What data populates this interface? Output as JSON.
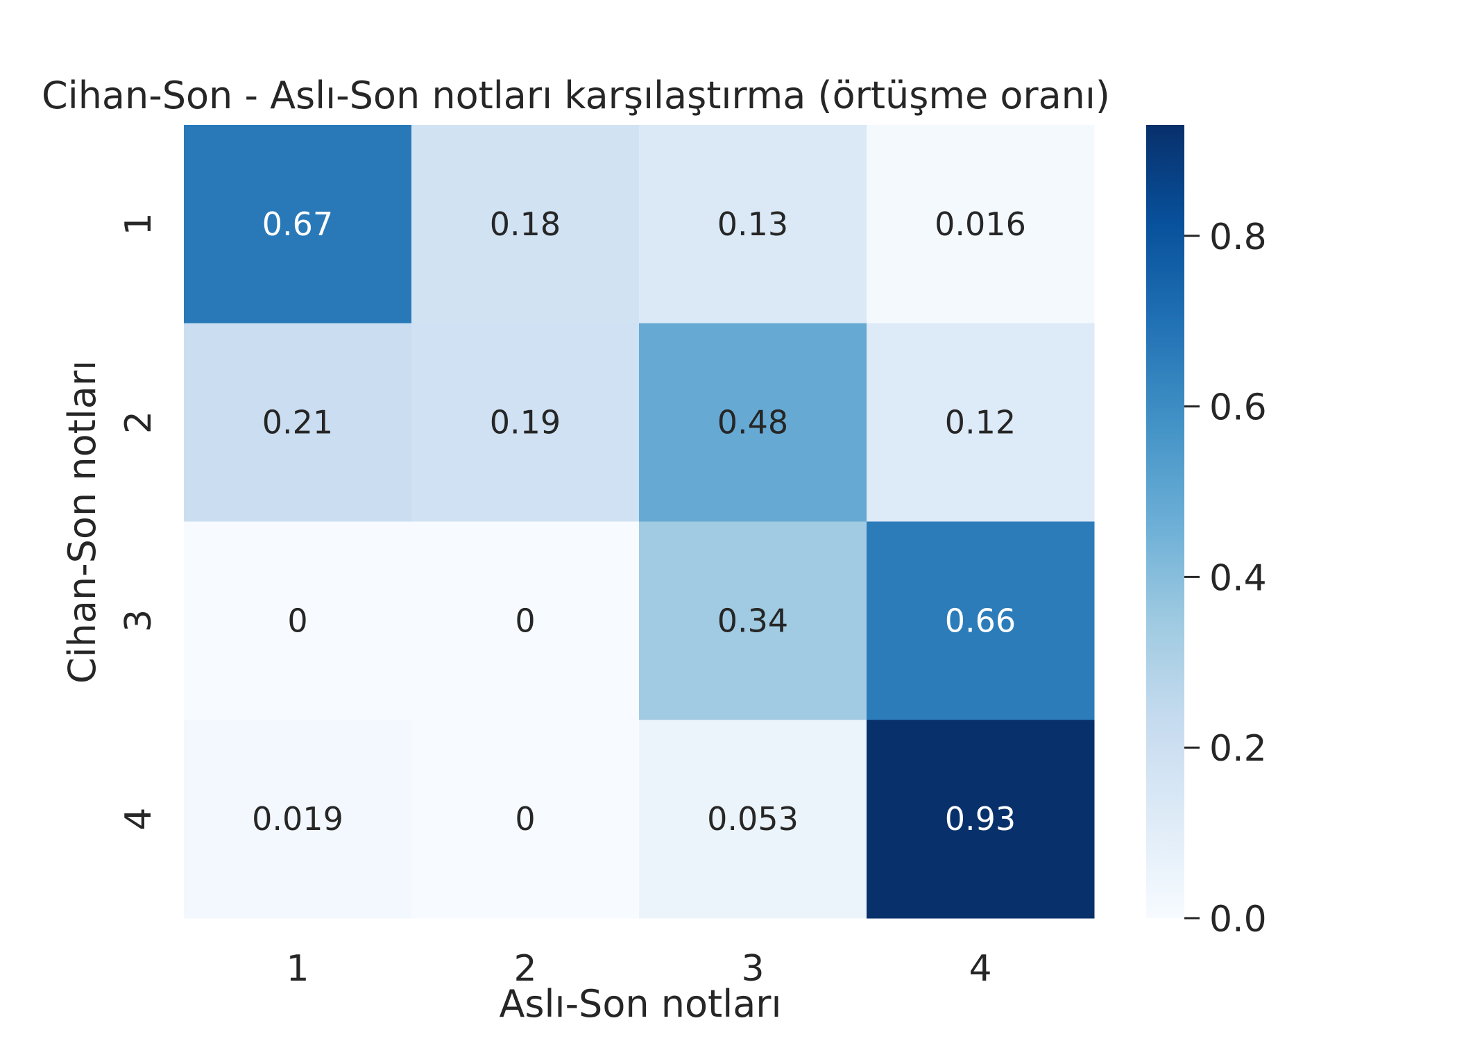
{
  "chart_data": {
    "type": "heatmap",
    "title": "Cihan-Son - Aslı-Son notları karşılaştırma (örtüşme oranı)",
    "xlabel": "Aslı-Son notları",
    "ylabel": "Cihan-Son notları",
    "x_categories": [
      "1",
      "2",
      "3",
      "4"
    ],
    "y_categories": [
      "1",
      "2",
      "3",
      "4"
    ],
    "values": [
      [
        0.67,
        0.18,
        0.13,
        0.016
      ],
      [
        0.21,
        0.19,
        0.48,
        0.12
      ],
      [
        0,
        0,
        0.34,
        0.66
      ],
      [
        0.019,
        0,
        0.053,
        0.93
      ]
    ],
    "value_labels": [
      [
        "0.67",
        "0.18",
        "0.13",
        "0.016"
      ],
      [
        "0.21",
        "0.19",
        "0.48",
        "0.12"
      ],
      [
        "0",
        "0",
        "0.34",
        "0.66"
      ],
      [
        "0.019",
        "0",
        "0.053",
        "0.93"
      ]
    ],
    "colormap": "Blues",
    "colorbar": {
      "range": [
        0,
        0.93
      ],
      "ticks": [
        0.0,
        0.2,
        0.4,
        0.6,
        0.8
      ],
      "tick_labels": [
        "0.0",
        "0.2",
        "0.4",
        "0.6",
        "0.8"
      ]
    },
    "colors": {
      "dark_text": "#262626",
      "light_text": "#ffffff",
      "cmap_low": "#f7fbff",
      "cmap_high": "#08306b"
    }
  }
}
